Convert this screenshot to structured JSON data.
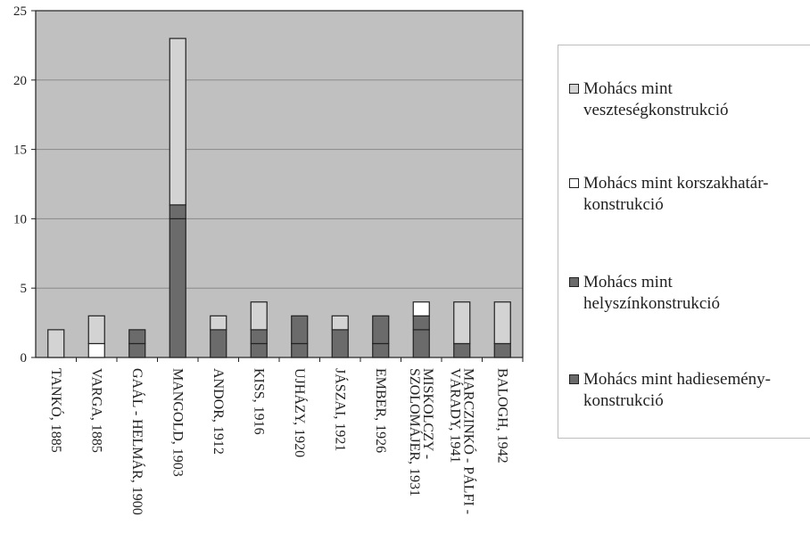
{
  "chart_data": {
    "type": "bar",
    "stacked": true,
    "categories": [
      "TANKÓ, 1885",
      "VARGA, 1885",
      "GAÁL - HELMÁR, 1900",
      "MANGOLD, 1903",
      "ANDOR, 1912",
      "KISS, 1916",
      "UJHÁZY, 1920",
      "JÁSZAI, 1921",
      "EMBER, 1926",
      "MISKOLCZY - SZOLOMÁJER, 1931",
      "MARCZINKÓ - PÁLFI - VÁRADY, 1941",
      "BALOGH, 1942"
    ],
    "series": [
      {
        "name": "Mohács mint hadiesemény-konstrukció",
        "color": "#6b6b6b",
        "values": [
          0,
          0,
          1,
          10,
          0,
          1,
          1,
          0,
          1,
          2,
          0,
          0
        ]
      },
      {
        "name": "Mohács mint helyszínkonstrukció",
        "color": "#6b6b6b",
        "values": [
          0,
          0,
          1,
          1,
          2,
          1,
          2,
          2,
          2,
          1,
          1,
          1
        ]
      },
      {
        "name": "Mohács mint korszakhatár-konstrukció",
        "color": "#ffffff",
        "values": [
          0,
          1,
          0,
          0,
          0,
          0,
          0,
          0,
          0,
          1,
          0,
          0
        ]
      },
      {
        "name": "Mohács mint veszteségkonstrukció",
        "color": "#d3d3d3",
        "values": [
          2,
          2,
          0,
          12,
          1,
          2,
          0,
          1,
          0,
          0,
          3,
          3
        ]
      }
    ],
    "ylim": [
      0,
      25
    ],
    "yticks": [
      0,
      5,
      10,
      15,
      20,
      25
    ],
    "grid": true,
    "legend_position": "right",
    "plot_background": "#c0c0c0"
  },
  "legend": {
    "items": [
      {
        "label": "Mohács mint veszteségkonstrukció",
        "color": "#d3d3d3"
      },
      {
        "label": "Mohács mint korszakhatár-konstrukció",
        "color": "#ffffff"
      },
      {
        "label": "Mohács mint helyszínkonstrukció",
        "color": "#6b6b6b"
      },
      {
        "label": "Mohács mint hadiesemény-konstrukció",
        "color": "#6b6b6b"
      }
    ]
  }
}
